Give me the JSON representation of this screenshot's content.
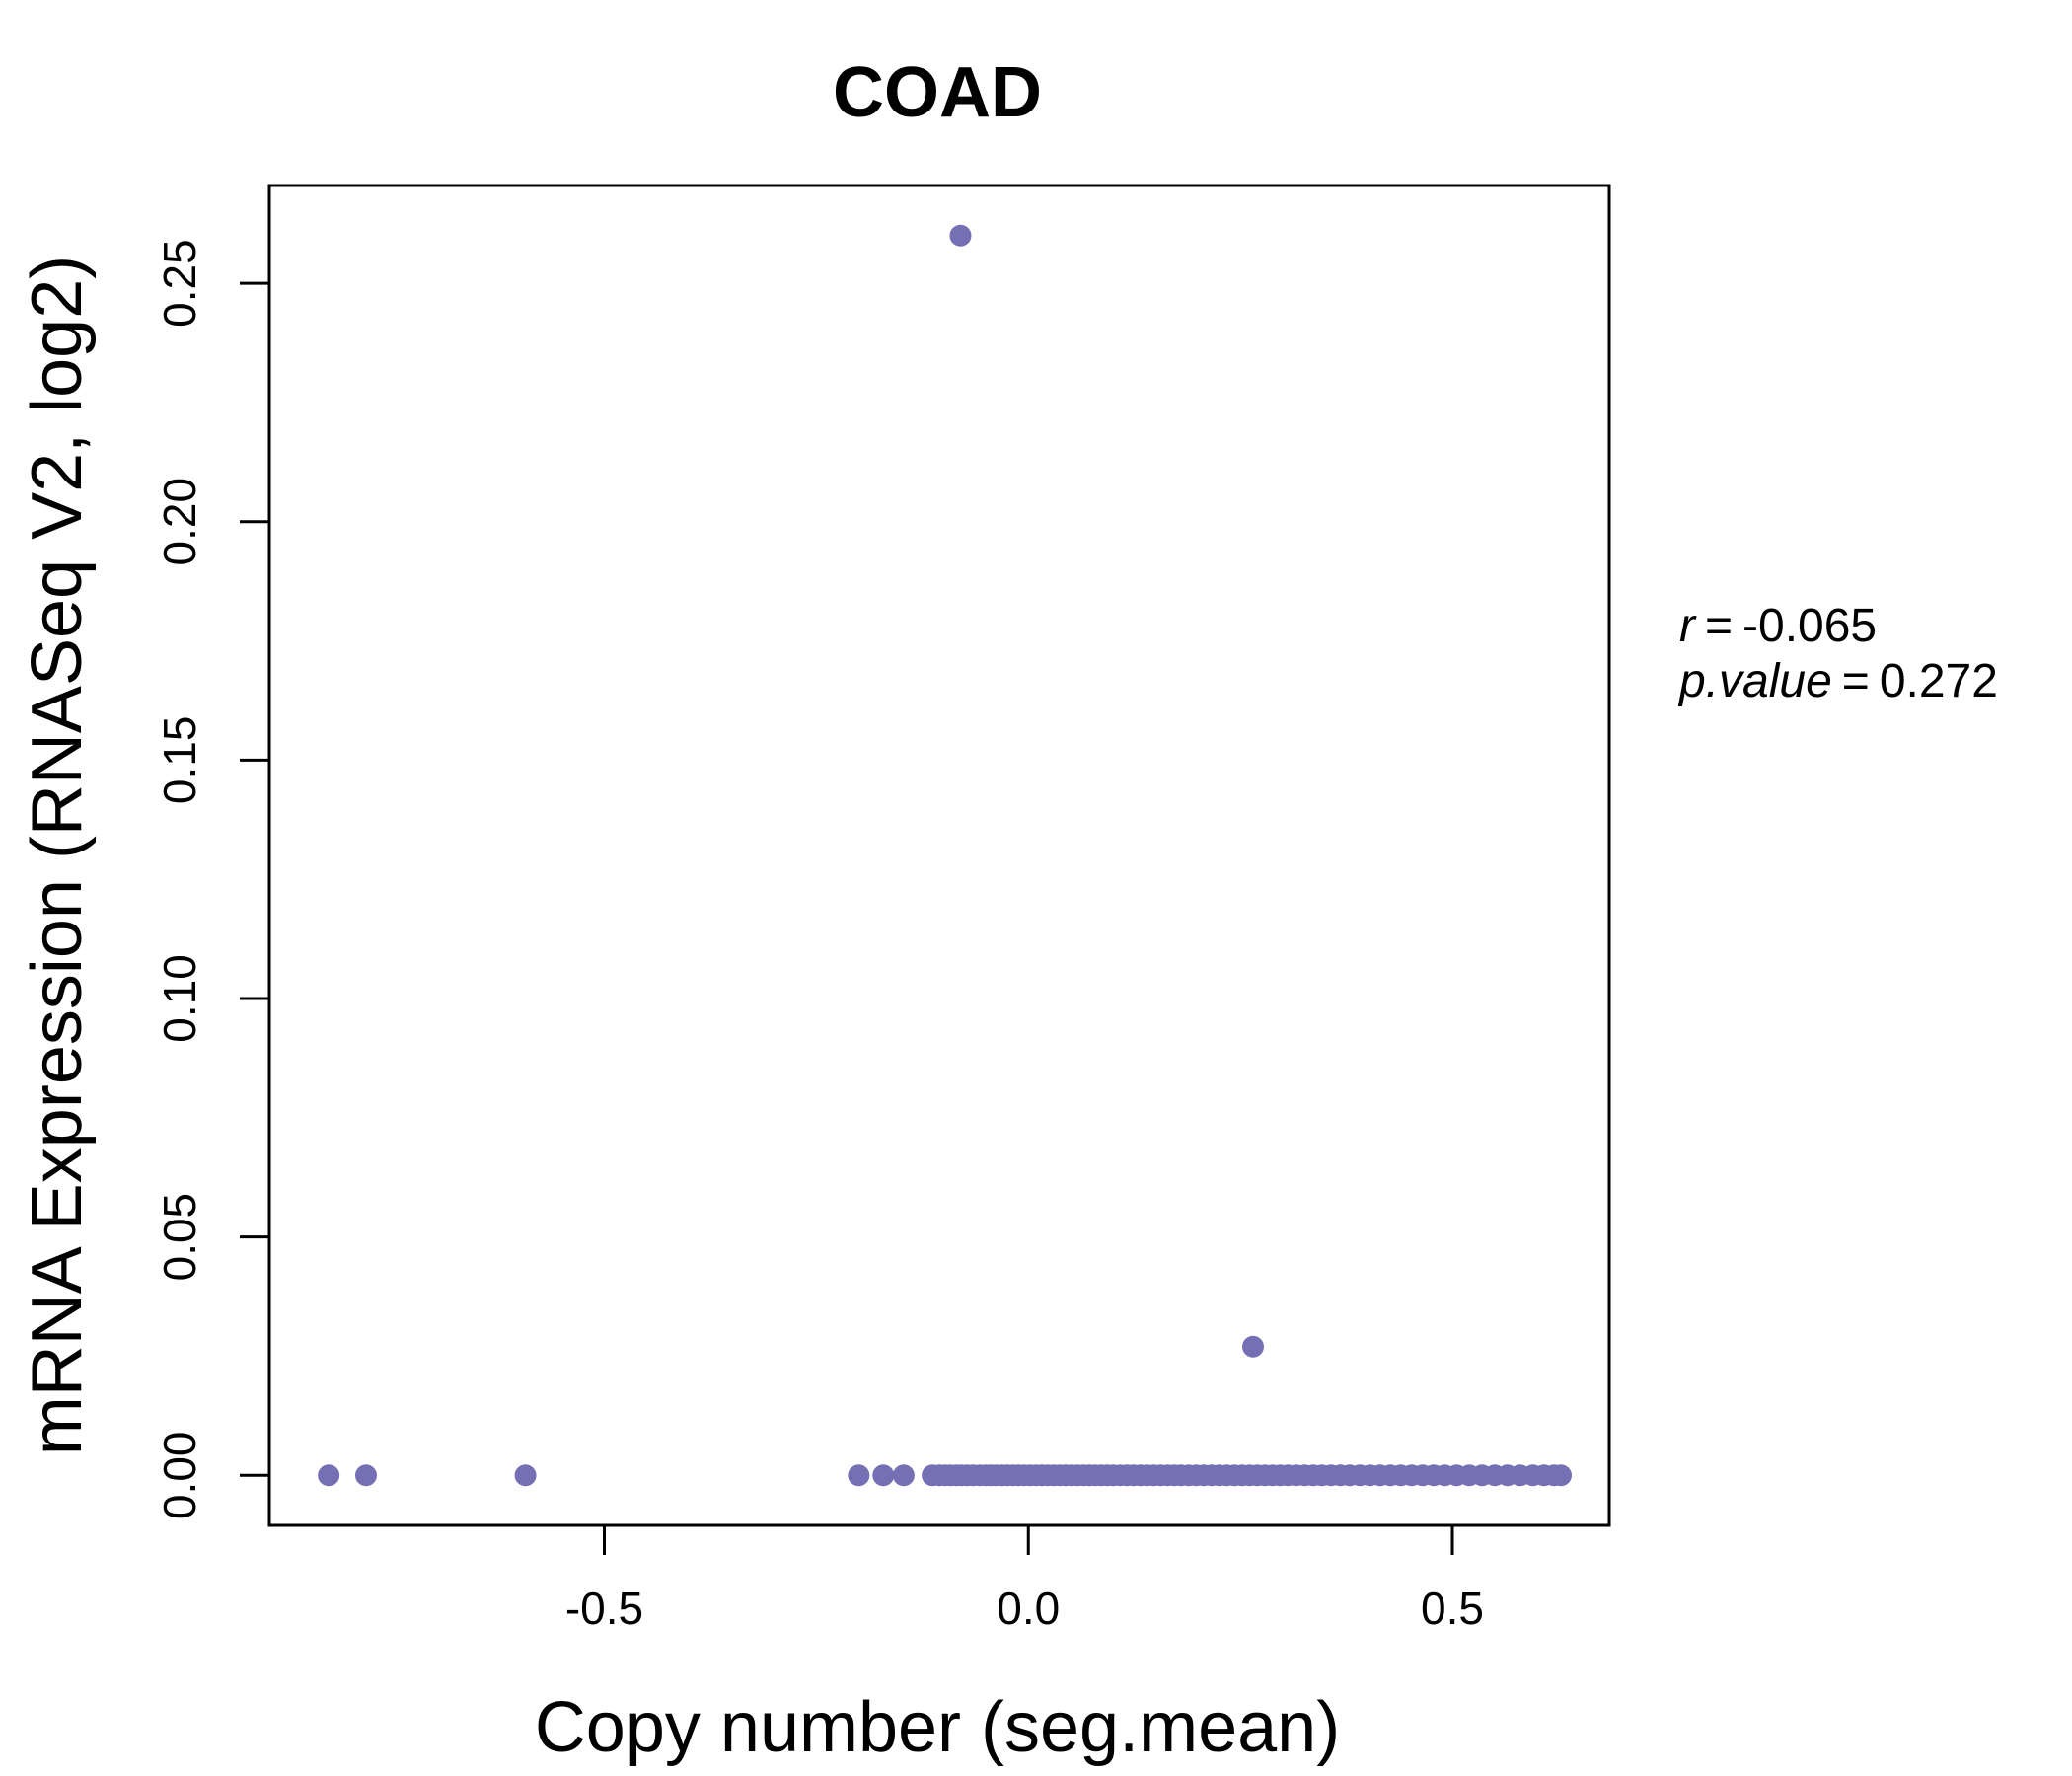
{
  "chart_data": {
    "type": "scatter",
    "title": "COAD",
    "xlabel": "Copy number (seg.mean)",
    "ylabel": "mRNA Expression (RNASeq V2, log2)",
    "xlim": [
      -0.895,
      0.685
    ],
    "ylim": [
      -0.0105,
      0.2705
    ],
    "x_ticks": [
      -0.5,
      0.0,
      0.5
    ],
    "x_tick_labels": [
      "-0.5",
      "0.0",
      "0.5"
    ],
    "y_ticks": [
      0.0,
      0.05,
      0.1,
      0.15,
      0.2,
      0.25
    ],
    "y_tick_labels": [
      "0.00",
      "0.05",
      "0.10",
      "0.15",
      "0.20",
      "0.25"
    ],
    "grid": false,
    "point_color": "#7570b3",
    "stats": {
      "r_label": "r",
      "r_value": "-0.065",
      "p_label": "p.value",
      "p_value": "0.272"
    },
    "x": [
      -0.825,
      -0.781,
      -0.593,
      -0.2,
      -0.171,
      -0.147,
      -0.113,
      -0.105,
      -0.098,
      -0.092,
      -0.085,
      -0.079,
      -0.08,
      -0.072,
      -0.065,
      -0.057,
      -0.05,
      -0.044,
      -0.038,
      -0.031,
      -0.025,
      -0.018,
      -0.012,
      -0.005,
      0.002,
      0.009,
      0.016,
      0.023,
      0.03,
      0.037,
      0.044,
      0.051,
      0.058,
      0.065,
      0.072,
      0.079,
      0.086,
      0.093,
      0.1,
      0.108,
      0.116,
      0.124,
      0.132,
      0.14,
      0.148,
      0.156,
      0.164,
      0.172,
      0.18,
      0.189,
      0.198,
      0.207,
      0.216,
      0.225,
      0.234,
      0.243,
      0.252,
      0.261,
      0.265,
      0.27,
      0.279,
      0.288,
      0.297,
      0.306,
      0.316,
      0.326,
      0.336,
      0.346,
      0.357,
      0.368,
      0.379,
      0.391,
      0.403,
      0.415,
      0.427,
      0.439,
      0.452,
      0.465,
      0.478,
      0.491,
      0.505,
      0.52,
      0.535,
      0.55,
      0.565,
      0.58,
      0.595,
      0.608,
      0.62,
      0.628
    ],
    "y": [
      0,
      0,
      0,
      0,
      0,
      0,
      0,
      0,
      0,
      0,
      0,
      0,
      0.26,
      0,
      0,
      0,
      0,
      0,
      0,
      0,
      0,
      0,
      0,
      0,
      0,
      0,
      0,
      0,
      0,
      0,
      0,
      0,
      0,
      0,
      0,
      0,
      0,
      0,
      0,
      0,
      0,
      0,
      0,
      0,
      0,
      0,
      0,
      0,
      0,
      0,
      0,
      0,
      0,
      0,
      0,
      0,
      0,
      0,
      0.027,
      0,
      0,
      0,
      0,
      0,
      0,
      0,
      0,
      0,
      0,
      0,
      0,
      0,
      0,
      0,
      0,
      0,
      0,
      0,
      0,
      0,
      0,
      0,
      0,
      0,
      0,
      0,
      0,
      0,
      0,
      0
    ]
  }
}
